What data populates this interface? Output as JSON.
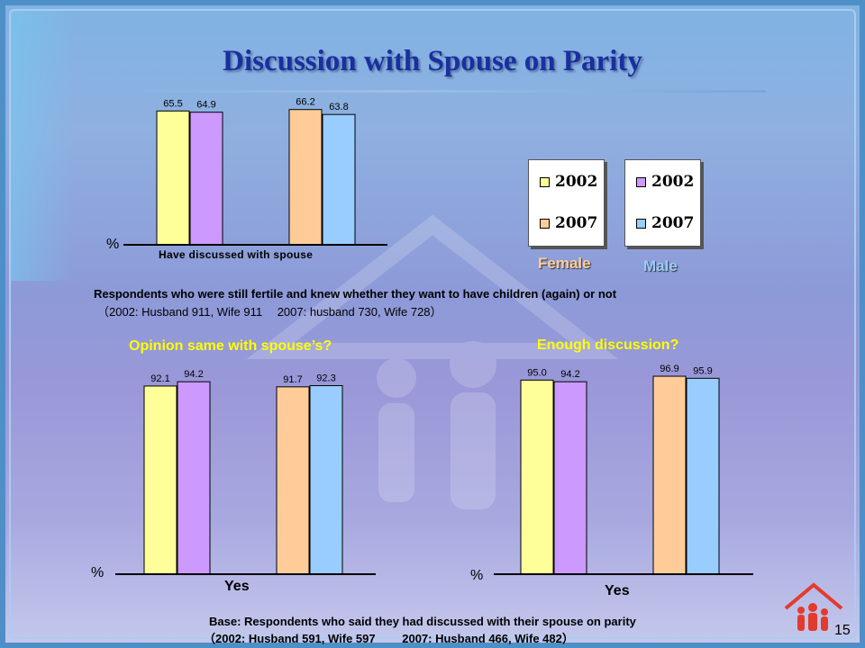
{
  "slide": {
    "title": "Discussion with Spouse on Parity",
    "page_number": "15"
  },
  "colors": {
    "female_2002": "#ffff99",
    "female_2007": "#ffcc99",
    "male_2002": "#cc99ff",
    "male_2007": "#99ccff",
    "title": "#1a2fa0",
    "highlight": "#ffff00"
  },
  "legend": {
    "female": {
      "label": "Female",
      "items": [
        "2002",
        "2007"
      ]
    },
    "male": {
      "label": "Male",
      "items": [
        "2002",
        "2007"
      ]
    }
  },
  "notes": {
    "top_line1": "Respondents who were still fertile and knew whether they want to have children (again) or not",
    "top_line2": "（2002: Husband 911, Wife 911　 2007: husband 730, Wife 728）",
    "base_line1": "Base: Respondents who said they had discussed with their spouse on parity",
    "base_line2": "（2002: Husband 591, Wife 597　　 2007: Husband 466, Wife 482）"
  },
  "chart_data": [
    {
      "type": "bar",
      "title": "",
      "xlabel": "Have discussed with spouse",
      "ylabel": "%",
      "categories": [
        "Have discussed with spouse"
      ],
      "series": [
        {
          "name": "Female 2002",
          "values": [
            65.5
          ]
        },
        {
          "name": "Male 2002",
          "values": [
            64.9
          ]
        },
        {
          "name": "Female 2007",
          "values": [
            66.2
          ]
        },
        {
          "name": "Male 2007",
          "values": [
            63.8
          ]
        }
      ],
      "ylim": [
        0,
        100
      ],
      "grid": false
    },
    {
      "type": "bar",
      "title": "Opinion same with spouse’s?",
      "xlabel": "Yes",
      "ylabel": "%",
      "categories": [
        "Yes"
      ],
      "series": [
        {
          "name": "Female 2002",
          "values": [
            92.1
          ]
        },
        {
          "name": "Male 2002",
          "values": [
            94.2
          ]
        },
        {
          "name": "Female 2007",
          "values": [
            91.7
          ]
        },
        {
          "name": "Male 2007",
          "values": [
            92.3
          ]
        }
      ],
      "ylim": [
        0,
        100
      ],
      "grid": false
    },
    {
      "type": "bar",
      "title": "Enough discussion?",
      "xlabel": "Yes",
      "ylabel": "%",
      "categories": [
        "Yes"
      ],
      "series": [
        {
          "name": "Female 2002",
          "values": [
            95.0
          ]
        },
        {
          "name": "Male 2002",
          "values": [
            94.2
          ]
        },
        {
          "name": "Female 2007",
          "values": [
            96.9
          ]
        },
        {
          "name": "Male 2007",
          "values": [
            95.9
          ]
        }
      ],
      "ylim": [
        0,
        100
      ],
      "grid": false
    }
  ]
}
